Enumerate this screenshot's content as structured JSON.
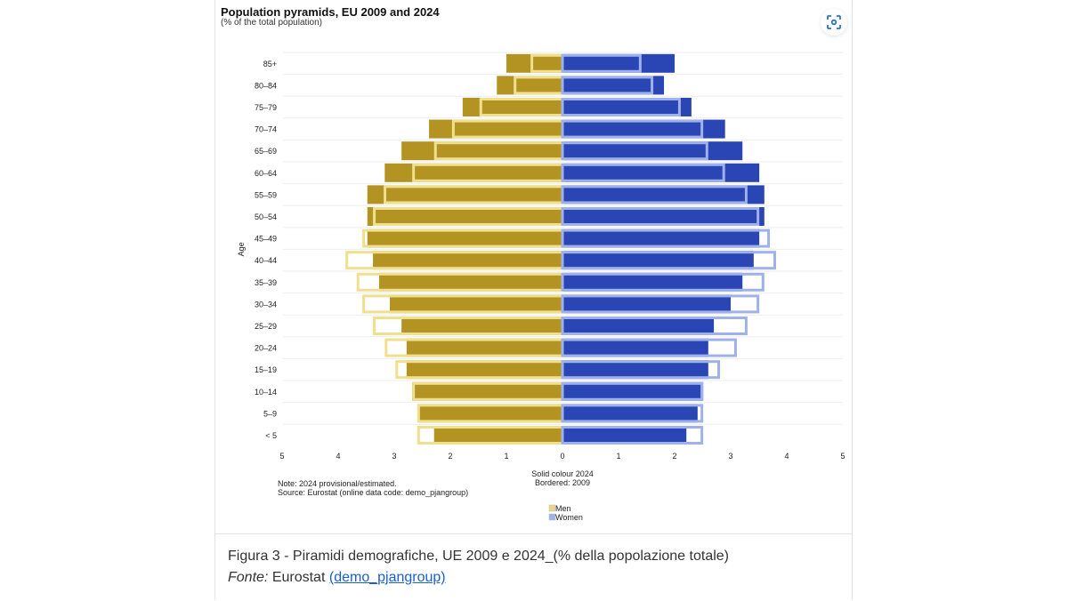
{
  "figure": {
    "caption": "Figura 3 - Piramidi demografiche, UE 2009 e 2024_(% della popolazione totale)",
    "source_label": "Fonte:",
    "source_text": "Eurostat",
    "source_link": "(demo_pjangroup)",
    "expand_icon": "lens-scan-icon"
  },
  "chart_data": {
    "type": "bar",
    "orientation": "horizontal-pyramid",
    "title": "Population pyramids, EU 2009 and 2024",
    "subtitle": "(% of the total population)",
    "ylabel": "Age",
    "xlim": [
      -5,
      5
    ],
    "xticks": [
      "5",
      "4",
      "3",
      "2",
      "1",
      "0",
      "1",
      "2",
      "3",
      "4",
      "5"
    ],
    "categories": [
      "85+",
      "80–84",
      "75–79",
      "70–74",
      "65–69",
      "60–64",
      "55–59",
      "50–54",
      "45–49",
      "40–44",
      "35–39",
      "30–34",
      "25–29",
      "20–24",
      "15–19",
      "10–14",
      "5–9",
      "< 5"
    ],
    "series": [
      {
        "name": "Men",
        "year": "2024",
        "style": "solid",
        "color": "#b39321",
        "values": [
          1.0,
          1.17,
          1.78,
          2.38,
          2.87,
          3.17,
          3.48,
          3.48,
          3.48,
          3.38,
          3.27,
          3.08,
          2.87,
          2.78,
          2.78,
          2.68,
          2.57,
          2.29
        ]
      },
      {
        "name": "Women",
        "year": "2024",
        "style": "solid",
        "color": "#2a46b4",
        "values": [
          2.0,
          1.81,
          2.3,
          2.9,
          3.21,
          3.51,
          3.6,
          3.6,
          3.51,
          3.41,
          3.21,
          3.0,
          2.7,
          2.6,
          2.6,
          2.51,
          2.41,
          2.21
        ]
      },
      {
        "name": "Men",
        "year": "2009",
        "style": "bordered",
        "color": "#f0e08e",
        "values": [
          0.57,
          0.87,
          1.48,
          1.97,
          2.29,
          2.68,
          3.19,
          3.38,
          3.57,
          3.87,
          3.67,
          3.57,
          3.38,
          3.17,
          2.98,
          2.68,
          2.59,
          2.59
        ]
      },
      {
        "name": "Women",
        "year": "2009",
        "style": "bordered",
        "color": "#9fb1ea",
        "values": [
          1.41,
          1.62,
          2.11,
          2.51,
          2.6,
          2.9,
          3.3,
          3.51,
          3.7,
          3.81,
          3.6,
          3.51,
          3.3,
          3.11,
          2.81,
          2.51,
          2.51,
          2.51
        ]
      }
    ],
    "annotation_center": [
      "Solid colour 2024",
      "Bordered: 2009"
    ],
    "note": "Note: 2024 provisional/estimated.",
    "source": "Source: Eurostat (online data code: demo_pjangroup)",
    "legend": {
      "placement": "bottom-center",
      "items": [
        {
          "label": "Men",
          "color": "#e9d68a"
        },
        {
          "label": "Women",
          "color": "#9fb1ea"
        }
      ]
    },
    "grid": "horizontal"
  }
}
